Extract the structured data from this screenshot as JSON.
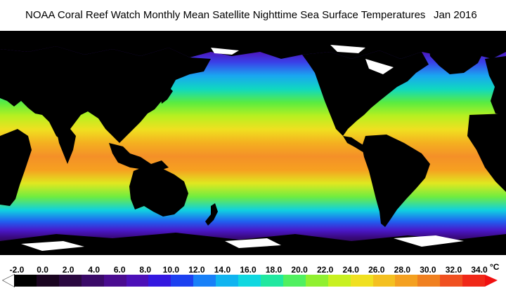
{
  "title": {
    "main": "NOAA Coral Reef Watch Monthly Mean Satellite Nighttime Sea Surface Temperatures",
    "date": "Jan 2016"
  },
  "legend": {
    "unit": "°C",
    "ticks": [
      "-2.0",
      "0.0",
      "2.0",
      "4.0",
      "6.0",
      "8.0",
      "10.0",
      "12.0",
      "14.0",
      "16.0",
      "18.0",
      "20.0",
      "22.0",
      "24.0",
      "26.0",
      "28.0",
      "30.0",
      "32.0",
      "34.0"
    ],
    "min_color": "#ffffff",
    "max_color": "#f01010",
    "colors": [
      "#000000",
      "#1a0420",
      "#2a0840",
      "#3a0a68",
      "#4a0c90",
      "#4c10b8",
      "#3418e0",
      "#1c40f0",
      "#1880f8",
      "#10b4f0",
      "#10d8e0",
      "#20e8a0",
      "#50f060",
      "#90f030",
      "#c8f020",
      "#f0e020",
      "#f4c020",
      "#f4a020",
      "#f08020",
      "#f05020",
      "#f02818"
    ]
  },
  "map": {
    "land_color": "#000000",
    "ice_color": "#ffffff"
  }
}
